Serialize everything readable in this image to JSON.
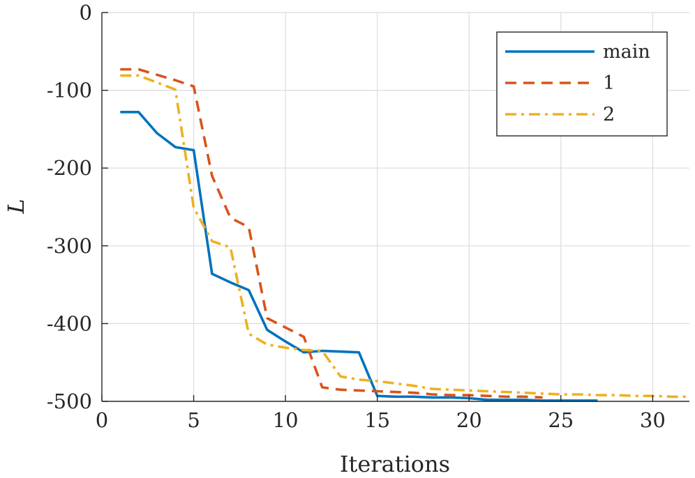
{
  "chart_data": {
    "type": "line",
    "title": "",
    "xlabel": "Iterations",
    "ylabel": "L",
    "xlim": [
      0,
      32
    ],
    "ylim": [
      -500,
      0
    ],
    "xticks": [
      0,
      5,
      10,
      15,
      20,
      25,
      30
    ],
    "yticks": [
      0,
      -100,
      -200,
      -300,
      -400,
      -500
    ],
    "xtick_labels": [
      "0",
      "5",
      "10",
      "15",
      "20",
      "25",
      "30"
    ],
    "ytick_labels": [
      "0",
      "-100",
      "-200",
      "-300",
      "-400",
      "-500"
    ],
    "grid": true,
    "legend_position": "top-right",
    "series": [
      {
        "name": "main",
        "color": "#0072BD",
        "style": "solid",
        "x": [
          1,
          2,
          3,
          4,
          5,
          6,
          7,
          8,
          9,
          10,
          11,
          12,
          13,
          14,
          15,
          16,
          17,
          18,
          19,
          20,
          21,
          22,
          23,
          24,
          25,
          26,
          27
        ],
        "y": [
          -128,
          -128,
          -155,
          -173,
          -177,
          -336,
          -347,
          -357,
          -408,
          -423,
          -437,
          -435,
          -436,
          -437,
          -493,
          -494,
          -494,
          -495,
          -495,
          -496,
          -498,
          -498,
          -498,
          -499,
          -499,
          -499,
          -499
        ]
      },
      {
        "name": "1",
        "color": "#D95319",
        "style": "dashed",
        "x": [
          1,
          2,
          3,
          4,
          5,
          6,
          7,
          8,
          9,
          10,
          11,
          12,
          13,
          14,
          15,
          16,
          17,
          18,
          19,
          20,
          21,
          22,
          23,
          24
        ],
        "y": [
          -73,
          -73,
          -80,
          -87,
          -95,
          -210,
          -264,
          -276,
          -393,
          -405,
          -417,
          -482,
          -485,
          -486,
          -487,
          -488,
          -489,
          -491,
          -492,
          -492,
          -493,
          -494,
          -494,
          -495
        ]
      },
      {
        "name": "2",
        "color": "#EDB120",
        "style": "dashdot",
        "x": [
          1,
          2,
          3,
          4,
          5,
          6,
          7,
          8,
          9,
          10,
          11,
          12,
          13,
          14,
          15,
          16,
          17,
          18,
          19,
          20,
          21,
          22,
          23,
          24,
          25,
          26,
          27,
          28,
          29,
          30,
          31,
          32
        ],
        "y": [
          -81,
          -81,
          -90,
          -99,
          -251,
          -294,
          -302,
          -413,
          -427,
          -431,
          -434,
          -435,
          -468,
          -472,
          -474,
          -477,
          -480,
          -484,
          -485,
          -486,
          -487,
          -488,
          -489,
          -490,
          -491,
          -491,
          -492,
          -492,
          -493,
          -493,
          -494,
          -494
        ]
      }
    ]
  }
}
